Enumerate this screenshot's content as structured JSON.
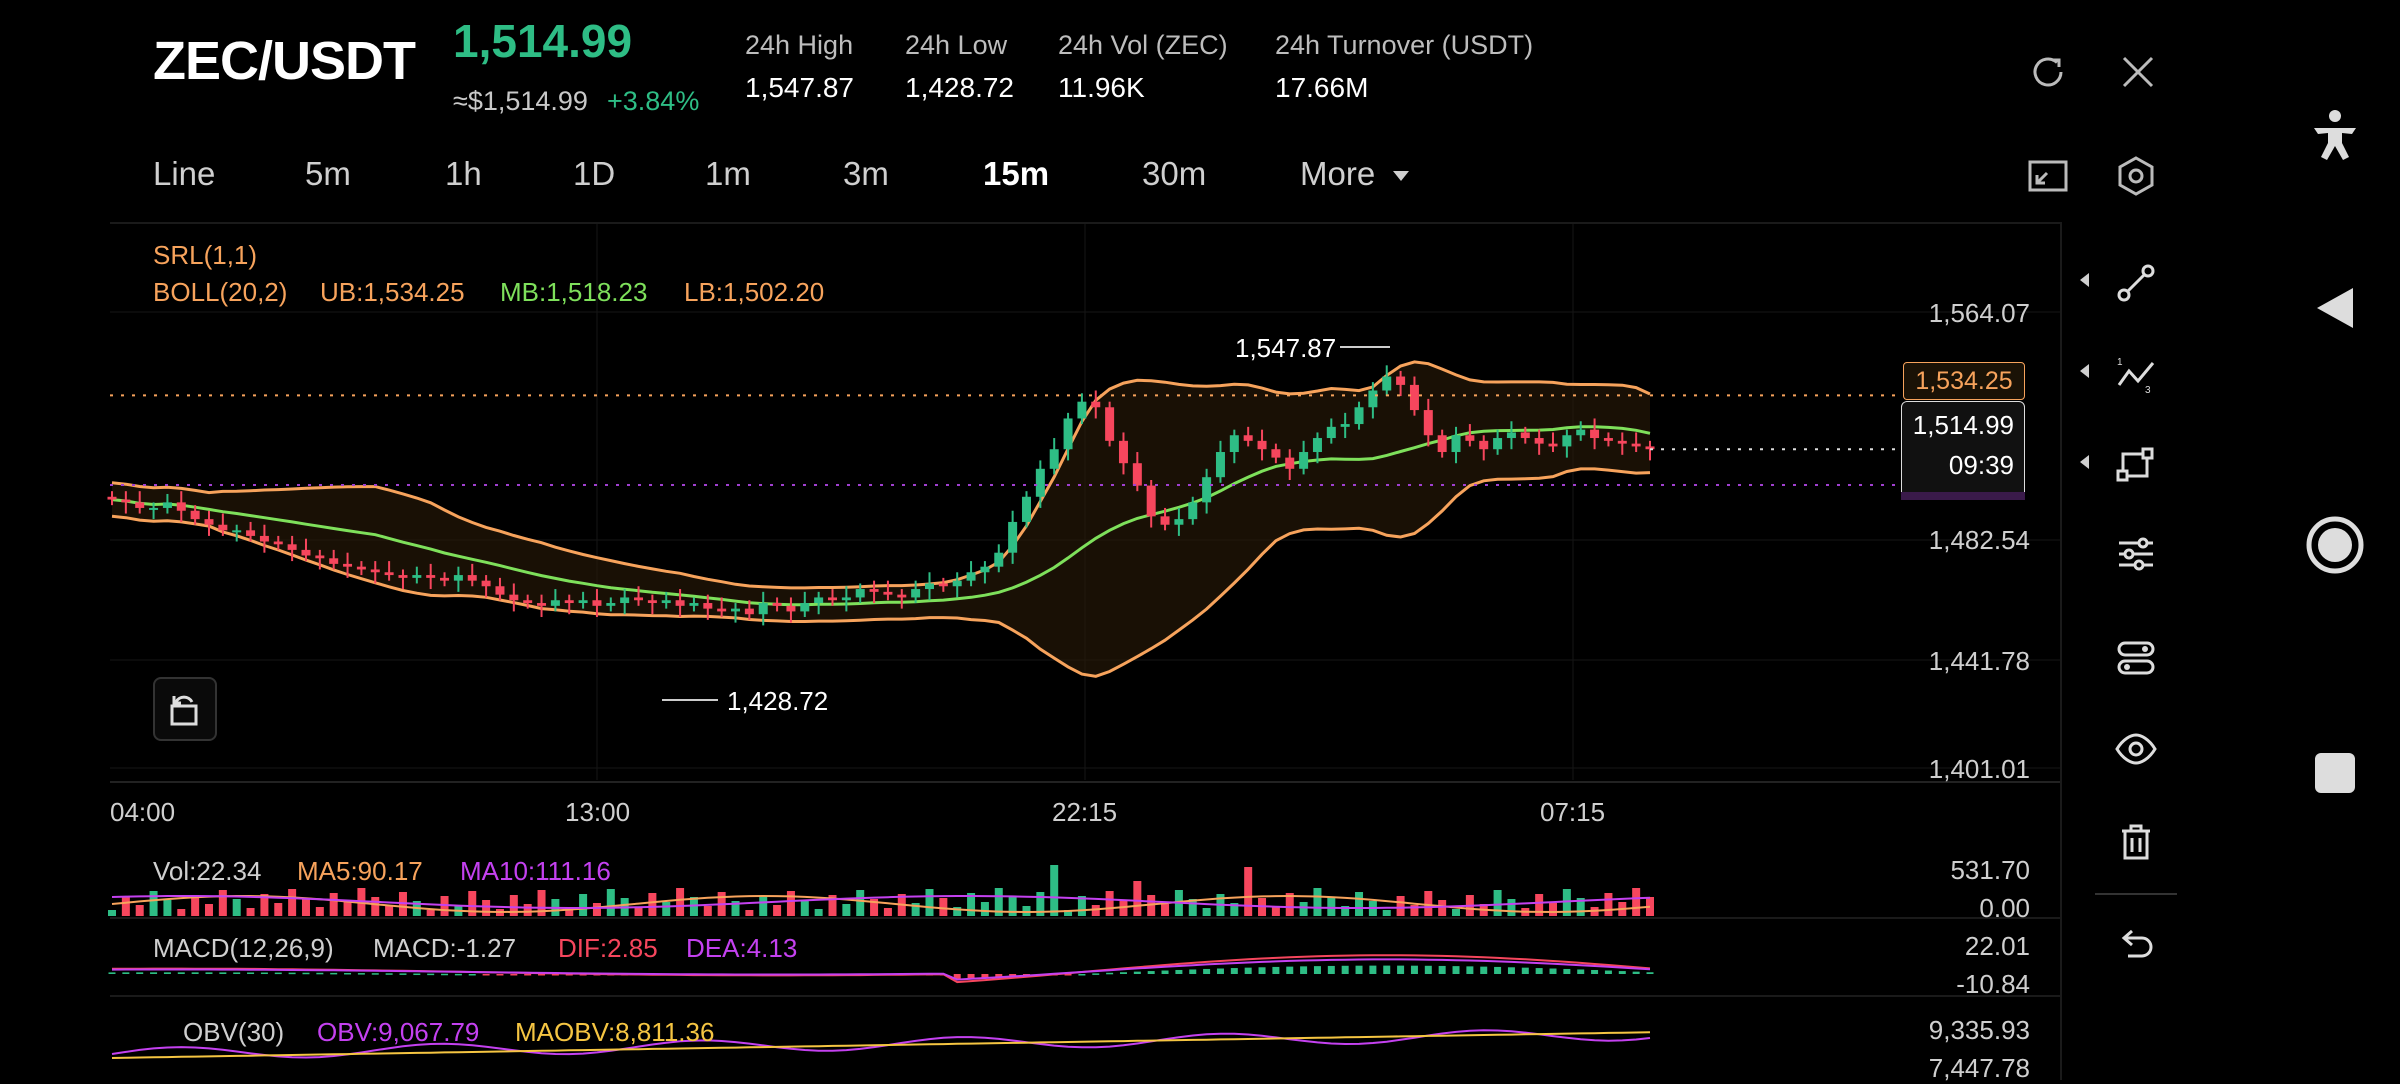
{
  "header": {
    "pair": "ZEC/USDT",
    "last_price": "1,514.99",
    "approx": "≈$1,514.99",
    "change": "+3.84%",
    "stats": [
      {
        "label": "24h High",
        "value": "1,547.87"
      },
      {
        "label": "24h Low",
        "value": "1,428.72"
      },
      {
        "label": "24h Vol (ZEC)",
        "value": "11.96K"
      },
      {
        "label": "24h Turnover (USDT)",
        "value": "17.66M"
      }
    ]
  },
  "tabs": [
    {
      "label": "Line",
      "active": false
    },
    {
      "label": "5m",
      "active": false
    },
    {
      "label": "1h",
      "active": false
    },
    {
      "label": "1D",
      "active": false
    },
    {
      "label": "1m",
      "active": false
    },
    {
      "label": "3m",
      "active": false
    },
    {
      "label": "15m",
      "active": true
    },
    {
      "label": "30m",
      "active": false
    },
    {
      "label": "More",
      "active": false
    }
  ],
  "indicators": {
    "srl": "SRL(1,1)",
    "boll": "BOLL(20,2)",
    "ub": "UB:1,534.25",
    "mb": "MB:1,518.23",
    "lb": "LB:1,502.20",
    "vol": "Vol:22.34",
    "ma5": "MA5:90.17",
    "ma10": "MA10:111.16",
    "macd_name": "MACD(12,26,9)",
    "macd": "MACD:-1.27",
    "dif": "DIF:2.85",
    "dea": "DEA:4.13",
    "obv_name": "OBV(30)",
    "obv": "OBV:9,067.79",
    "maobv": "MAOBV:8,811.36"
  },
  "axis": {
    "price_ticks": [
      "1,564.07",
      "1,482.54",
      "1,441.78",
      "1,401.01"
    ],
    "time_ticks": [
      "04:00",
      "13:00",
      "22:15",
      "07:15"
    ],
    "vol_ticks": [
      "531.70",
      "0.00"
    ],
    "macd_ticks": [
      "22.01",
      "-10.84"
    ],
    "obv_ticks": [
      "9,335.93",
      "7,447.78"
    ]
  },
  "markers": {
    "high": "1,547.87",
    "low": "1,428.72",
    "ub_tag": "1,534.25",
    "current_price": "1,514.99",
    "countdown": "09:39"
  },
  "colors": {
    "up": "#2ebd85",
    "down": "#f6465d",
    "boll_band": "#f7a35c",
    "mb": "#7ee05b",
    "purple": "#c441f0",
    "yellow": "#f5c542"
  },
  "icons": {
    "header": [
      "refresh-icon",
      "close-icon"
    ],
    "tabs_right": [
      "fullscreen-icon",
      "settings-icon"
    ],
    "tools": [
      "trendline-icon",
      "fibonacci-icon",
      "shape-icon",
      "indicator-settings-icon",
      "indicator-toggle-icon",
      "visibility-icon",
      "delete-icon",
      "undo-icon"
    ]
  },
  "chart_data": [
    {
      "type": "candlestick",
      "interval": "15m",
      "x_ticks": [
        "04:00",
        "13:00",
        "22:15",
        "07:15"
      ],
      "y_ticks": [
        1564.07,
        1482.54,
        1441.78,
        1401.01
      ],
      "ylim": [
        1401.01,
        1564.07
      ],
      "series_close": [
        1497,
        1496,
        1494,
        1494,
        1496,
        1493,
        1490,
        1488,
        1486,
        1486,
        1484,
        1482,
        1481,
        1479,
        1477,
        1476,
        1474,
        1473,
        1472,
        1471,
        1470,
        1469,
        1470,
        1469,
        1468,
        1470,
        1468,
        1466,
        1463,
        1461,
        1460,
        1459,
        1461,
        1460,
        1461,
        1459,
        1460,
        1462,
        1461,
        1460,
        1461,
        1459,
        1460,
        1458,
        1457,
        1458,
        1456,
        1460,
        1459,
        1457,
        1460,
        1462,
        1461,
        1462,
        1465,
        1464,
        1463,
        1462,
        1465,
        1467,
        1466,
        1468,
        1471,
        1473,
        1478,
        1489,
        1498,
        1508,
        1515,
        1526,
        1532,
        1530,
        1518,
        1510,
        1502,
        1491,
        1488,
        1490,
        1496,
        1505,
        1514,
        1520,
        1518,
        1515,
        1512,
        1508,
        1514,
        1519,
        1523,
        1524,
        1530,
        1536,
        1541,
        1538,
        1529,
        1520,
        1514,
        1520,
        1518,
        1515,
        1519,
        1521,
        1519,
        1517,
        1516,
        1520,
        1522,
        1519,
        1518,
        1517,
        1516,
        1515
      ],
      "bollinger": {
        "ub": 1534.25,
        "mb": 1518.23,
        "lb": 1502.2
      },
      "high_marker": 1547.87,
      "low_marker": 1428.72,
      "current": 1514.99
    },
    {
      "type": "bar",
      "name": "Volume",
      "ylim": [
        0.0,
        531.7
      ],
      "latest": 22.34,
      "ma5": 90.17,
      "ma10": 111.16
    },
    {
      "type": "bar",
      "name": "MACD",
      "ylim": [
        -10.84,
        22.01
      ],
      "macd": -1.27,
      "dif": 2.85,
      "dea": 4.13
    },
    {
      "type": "line",
      "name": "OBV",
      "ylim": [
        7447.78,
        9335.93
      ],
      "obv": 9067.79,
      "maobv": 8811.36
    }
  ]
}
